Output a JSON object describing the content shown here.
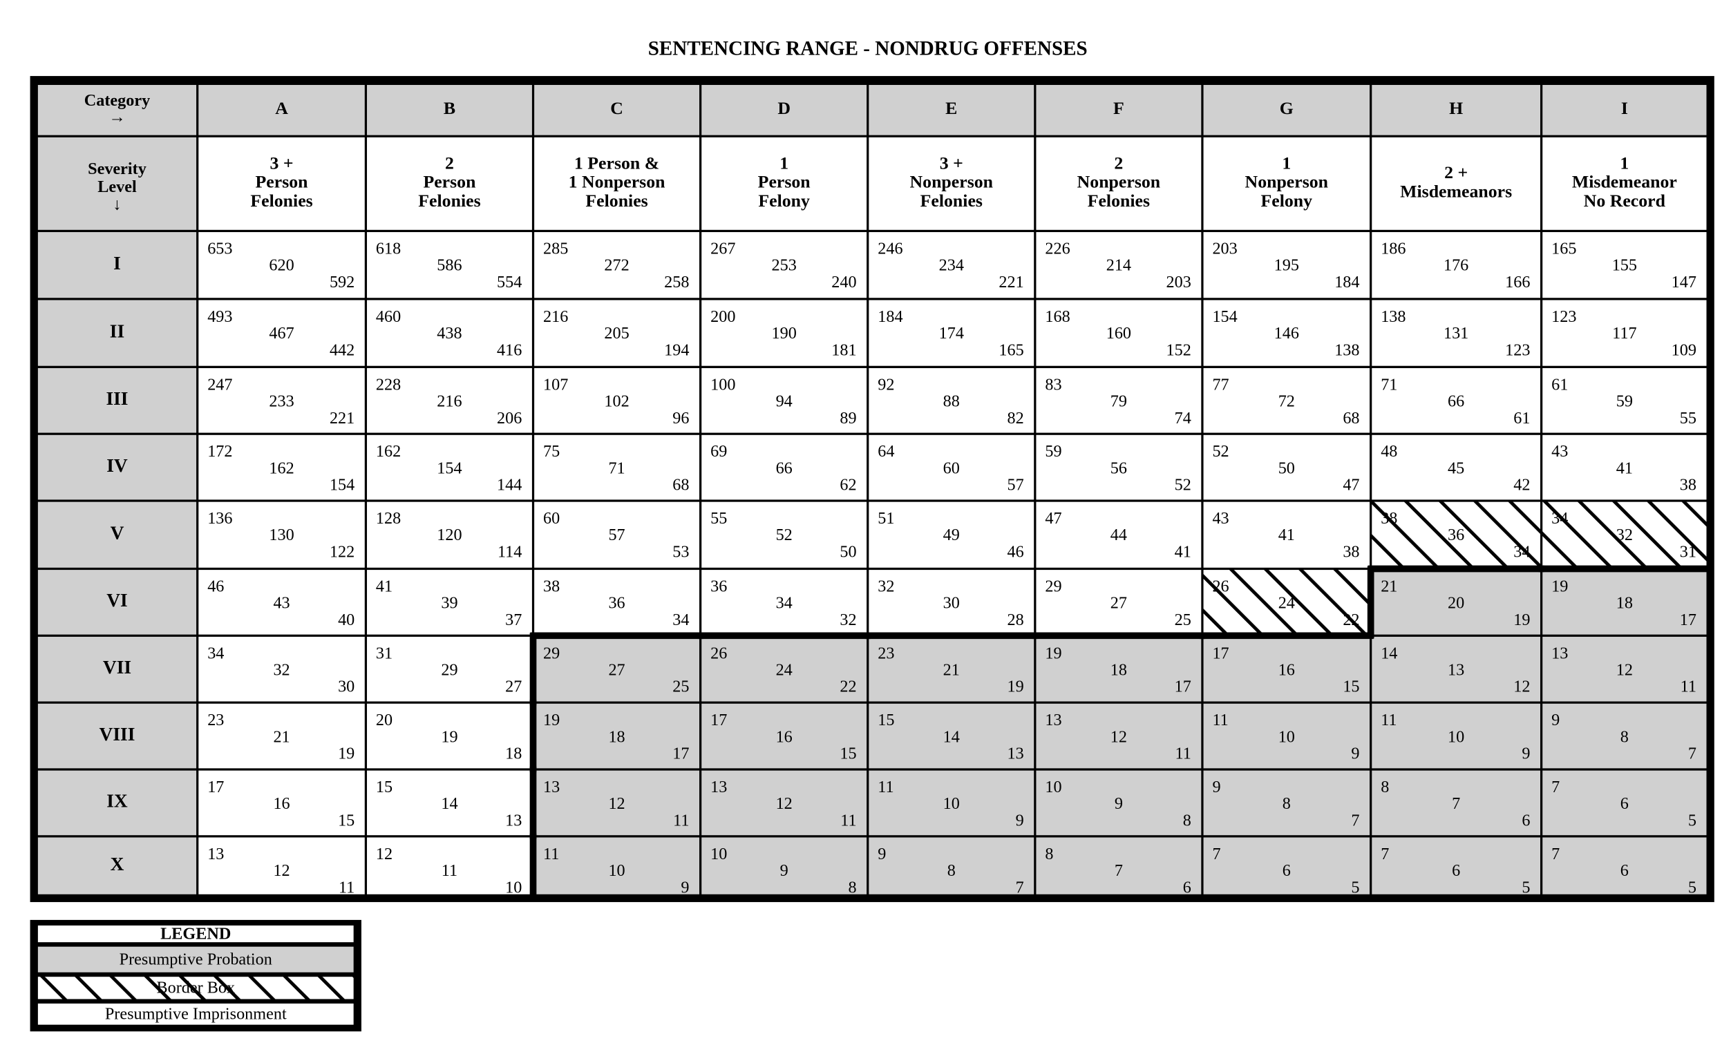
{
  "title": "SENTENCING RANGE - NONDRUG OFFENSES",
  "table": {
    "corner_top": [
      "Category",
      "→"
    ],
    "corner_bottom": [
      "Severity",
      "Level",
      "↓"
    ],
    "columns": [
      {
        "letter": "A",
        "label": [
          "3 +",
          "Person",
          "Felonies"
        ]
      },
      {
        "letter": "B",
        "label": [
          "2",
          "Person",
          "Felonies"
        ]
      },
      {
        "letter": "C",
        "label": [
          "1 Person &",
          "1 Nonperson",
          "Felonies"
        ]
      },
      {
        "letter": "D",
        "label": [
          "1",
          "Person",
          "Felony"
        ]
      },
      {
        "letter": "E",
        "label": [
          "3 +",
          "Nonperson",
          "Felonies"
        ]
      },
      {
        "letter": "F",
        "label": [
          "2",
          "Nonperson",
          "Felonies"
        ]
      },
      {
        "letter": "G",
        "label": [
          "1",
          "Nonperson",
          "Felony"
        ]
      },
      {
        "letter": "H",
        "label": [
          "2 +",
          "Misdemeanors"
        ]
      },
      {
        "letter": "I",
        "label": [
          "1",
          "Misdemeanor",
          "No Record"
        ]
      }
    ],
    "rows": [
      {
        "level": "I",
        "cells": [
          [
            653,
            620,
            592
          ],
          [
            618,
            586,
            554
          ],
          [
            285,
            272,
            258
          ],
          [
            267,
            253,
            240
          ],
          [
            246,
            234,
            221
          ],
          [
            226,
            214,
            203
          ],
          [
            203,
            195,
            184
          ],
          [
            186,
            176,
            166
          ],
          [
            165,
            155,
            147
          ]
        ]
      },
      {
        "level": "II",
        "cells": [
          [
            493,
            467,
            442
          ],
          [
            460,
            438,
            416
          ],
          [
            216,
            205,
            194
          ],
          [
            200,
            190,
            181
          ],
          [
            184,
            174,
            165
          ],
          [
            168,
            160,
            152
          ],
          [
            154,
            146,
            138
          ],
          [
            138,
            131,
            123
          ],
          [
            123,
            117,
            109
          ]
        ]
      },
      {
        "level": "III",
        "cells": [
          [
            247,
            233,
            221
          ],
          [
            228,
            216,
            206
          ],
          [
            107,
            102,
            96
          ],
          [
            100,
            94,
            89
          ],
          [
            92,
            88,
            82
          ],
          [
            83,
            79,
            74
          ],
          [
            77,
            72,
            68
          ],
          [
            71,
            66,
            61
          ],
          [
            61,
            59,
            55
          ]
        ]
      },
      {
        "level": "IV",
        "cells": [
          [
            172,
            162,
            154
          ],
          [
            162,
            154,
            144
          ],
          [
            75,
            71,
            68
          ],
          [
            69,
            66,
            62
          ],
          [
            64,
            60,
            57
          ],
          [
            59,
            56,
            52
          ],
          [
            52,
            50,
            47
          ],
          [
            48,
            45,
            42
          ],
          [
            43,
            41,
            38
          ]
        ]
      },
      {
        "level": "V",
        "cells": [
          [
            136,
            130,
            122
          ],
          [
            128,
            120,
            114
          ],
          [
            60,
            57,
            53
          ],
          [
            55,
            52,
            50
          ],
          [
            51,
            49,
            46
          ],
          [
            47,
            44,
            41
          ],
          [
            43,
            41,
            38
          ],
          [
            38,
            36,
            34
          ],
          [
            34,
            32,
            31
          ]
        ]
      },
      {
        "level": "VI",
        "cells": [
          [
            46,
            43,
            40
          ],
          [
            41,
            39,
            37
          ],
          [
            38,
            36,
            34
          ],
          [
            36,
            34,
            32
          ],
          [
            32,
            30,
            28
          ],
          [
            29,
            27,
            25
          ],
          [
            26,
            24,
            22
          ],
          [
            21,
            20,
            19
          ],
          [
            19,
            18,
            17
          ]
        ]
      },
      {
        "level": "VII",
        "cells": [
          [
            34,
            32,
            30
          ],
          [
            31,
            29,
            27
          ],
          [
            29,
            27,
            25
          ],
          [
            26,
            24,
            22
          ],
          [
            23,
            21,
            19
          ],
          [
            19,
            18,
            17
          ],
          [
            17,
            16,
            15
          ],
          [
            14,
            13,
            12
          ],
          [
            13,
            12,
            11
          ]
        ]
      },
      {
        "level": "VIII",
        "cells": [
          [
            23,
            21,
            19
          ],
          [
            20,
            19,
            18
          ],
          [
            19,
            18,
            17
          ],
          [
            17,
            16,
            15
          ],
          [
            15,
            14,
            13
          ],
          [
            13,
            12,
            11
          ],
          [
            11,
            10,
            9
          ],
          [
            11,
            10,
            9
          ],
          [
            9,
            8,
            7
          ]
        ]
      },
      {
        "level": "IX",
        "cells": [
          [
            17,
            16,
            15
          ],
          [
            15,
            14,
            13
          ],
          [
            13,
            12,
            11
          ],
          [
            13,
            12,
            11
          ],
          [
            11,
            10,
            9
          ],
          [
            10,
            9,
            8
          ],
          [
            9,
            8,
            7
          ],
          [
            8,
            7,
            6
          ],
          [
            7,
            6,
            5
          ]
        ]
      },
      {
        "level": "X",
        "cells": [
          [
            13,
            12,
            11
          ],
          [
            12,
            11,
            10
          ],
          [
            11,
            10,
            9
          ],
          [
            10,
            9,
            8
          ],
          [
            9,
            8,
            7
          ],
          [
            8,
            7,
            6
          ],
          [
            7,
            6,
            5
          ],
          [
            7,
            6,
            5
          ],
          [
            7,
            6,
            5
          ]
        ]
      }
    ]
  },
  "legend": {
    "title": "LEGEND",
    "items": [
      "Presumptive Probation",
      "Border Box",
      "Presumptive Imprisonment"
    ]
  }
}
